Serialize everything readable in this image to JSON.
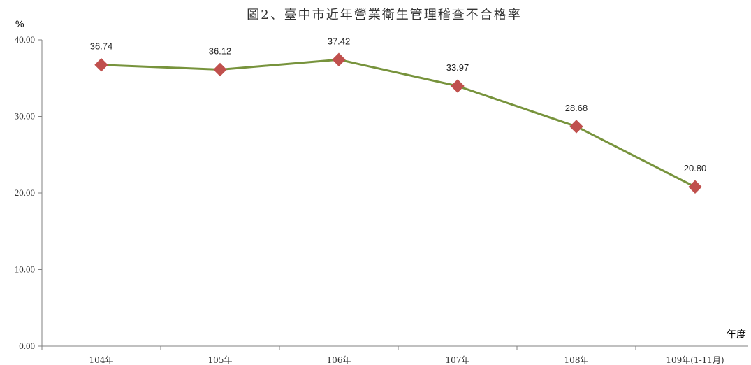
{
  "chart_data": {
    "type": "line",
    "title": "圖2、臺中市近年營業衛生管理稽查不合格率",
    "ylabel": "%",
    "xlabel": "年度",
    "categories": [
      "104年",
      "105年",
      "106年",
      "107年",
      "108年",
      "109年(1-11月)"
    ],
    "values": [
      36.74,
      36.12,
      37.42,
      33.97,
      28.68,
      20.8
    ],
    "value_labels": [
      "36.74",
      "36.12",
      "37.42",
      "33.97",
      "28.68",
      "20.80"
    ],
    "ylim": [
      0,
      40
    ],
    "yticks": [
      "0.00",
      "10.00",
      "20.00",
      "30.00",
      "40.00"
    ],
    "grid": false,
    "colors": {
      "line": "#77933c",
      "marker": "#c0504d",
      "axis": "#808080"
    }
  }
}
